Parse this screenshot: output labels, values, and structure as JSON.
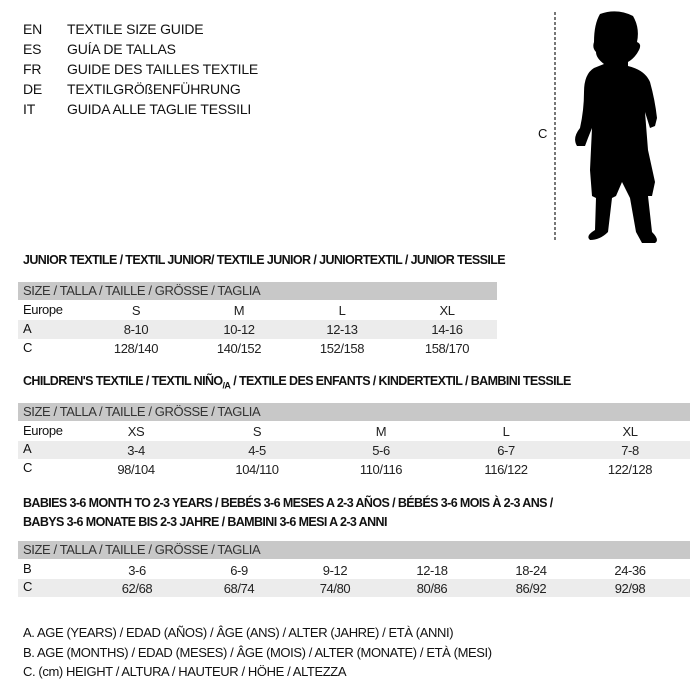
{
  "languages": [
    {
      "code": "EN",
      "title": "TEXTILE SIZE GUIDE"
    },
    {
      "code": "ES",
      "title": "GUÍA DE TALLAS"
    },
    {
      "code": "FR",
      "title": "GUIDE DES TAILLES TEXTILE"
    },
    {
      "code": "DE",
      "title": "TEXTILGRÖßENFÜHRUNG"
    },
    {
      "code": "IT",
      "title": "GUIDA ALLE TAGLIE TESSILI"
    }
  ],
  "figure": {
    "measure_label": "C",
    "icon": "child-silhouette-icon"
  },
  "size_header": "SIZE / TALLA / TAILLE / GRÖSSE / TAGLIA",
  "junior": {
    "title": "JUNIOR TEXTILE / TEXTIL JUNIOR/ TEXTILE JUNIOR / JUNIORTEXTIL / JUNIOR TESSILE",
    "rows": [
      {
        "label": "Europe",
        "values": [
          "S",
          "M",
          "L",
          "XL"
        ]
      },
      {
        "label": "A",
        "values": [
          "8-10",
          "10-12",
          "12-13",
          "14-16"
        ]
      },
      {
        "label": "C",
        "values": [
          "128/140",
          "140/152",
          "152/158",
          "158/170"
        ]
      }
    ]
  },
  "children": {
    "title_pre": "CHILDREN'S TEXTILE / TEXTIL NIÑO",
    "title_sub": "/A",
    "title_post": " / TEXTILE DES ENFANTS / KINDERTEXTIL / BAMBINI TESSILE",
    "rows": [
      {
        "label": "Europe",
        "values": [
          "XS",
          "S",
          "M",
          "L",
          "XL"
        ]
      },
      {
        "label": "A",
        "values": [
          "3-4",
          "4-5",
          "5-6",
          "6-7",
          "7-8"
        ]
      },
      {
        "label": "C",
        "values": [
          "98/104",
          "104/110",
          "110/116",
          "116/122",
          "122/128"
        ]
      }
    ]
  },
  "babies": {
    "title_line1": "BABIES 3-6 MONTH TO 2-3 YEARS / BEBÉS 3-6 MESES A 2-3 AÑOS / BÉBÉS 3-6 MOIS À 2-3 ANS /",
    "title_line2": "BABYS 3-6 MONATE BIS 2-3 JAHRE / BAMBINI 3-6 MESI A 2-3 ANNI",
    "rows": [
      {
        "label": "B",
        "values": [
          "3-6",
          "6-9",
          "9-12",
          "12-18",
          "18-24",
          "24-36"
        ]
      },
      {
        "label": "C",
        "values": [
          "62/68",
          "68/74",
          "74/80",
          "80/86",
          "86/92",
          "92/98"
        ]
      }
    ]
  },
  "legend": [
    "A. AGE (YEARS) / EDAD (AÑOS) / ÂGE (ANS) / ALTER (JAHRE) / ETÀ (ANNI)",
    "B. AGE (MONTHS) / EDAD (MESES) / ÂGE (MOIS) / ALTER (MONATE) / ETÀ (MESI)",
    "C. (cm) HEIGHT / ALTURA / HAUTEUR / HÖHE / ALTEZZA"
  ]
}
